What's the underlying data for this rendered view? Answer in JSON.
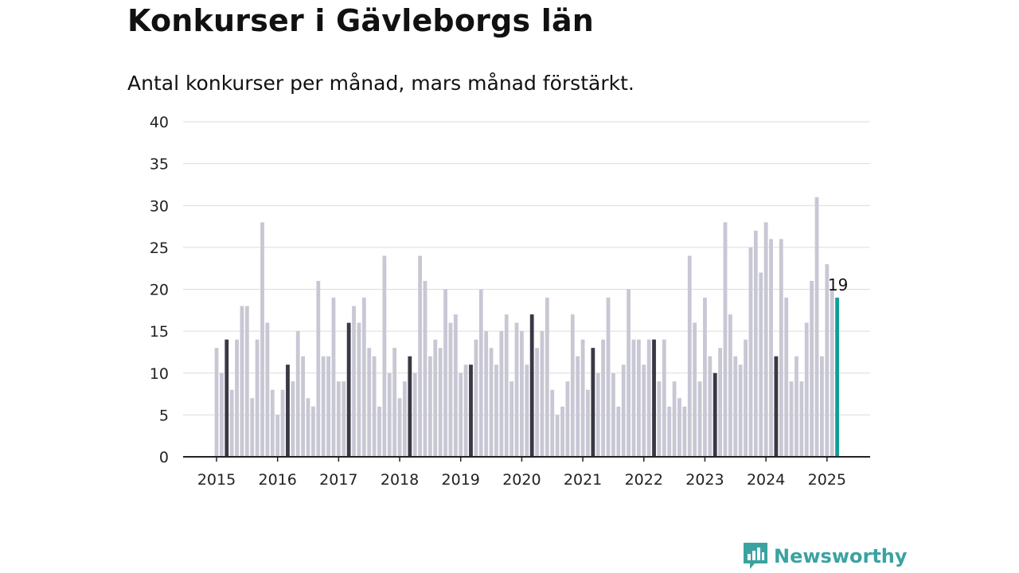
{
  "title": "Konkurser i Gävleborgs län",
  "subtitle": "Antal konkurser per månad, mars månad förstärkt.",
  "brand": {
    "name": "Newsworthy",
    "icon": "newsworthy-logo-icon",
    "color": "#3aa3a1"
  },
  "colors": {
    "bar": "#c8c7d4",
    "highlight": "#3a3845",
    "latest": "#0f9e96",
    "grid": "#dcdcdc",
    "axis": "#222222"
  },
  "chart_data": {
    "type": "bar",
    "start": "2015-01",
    "end": "2025-03",
    "categories": [
      "2015-01",
      "2015-02",
      "2015-03",
      "2015-04",
      "2015-05",
      "2015-06",
      "2015-07",
      "2015-08",
      "2015-09",
      "2015-10",
      "2015-11",
      "2015-12",
      "2016-01",
      "2016-02",
      "2016-03",
      "2016-04",
      "2016-05",
      "2016-06",
      "2016-07",
      "2016-08",
      "2016-09",
      "2016-10",
      "2016-11",
      "2016-12",
      "2017-01",
      "2017-02",
      "2017-03",
      "2017-04",
      "2017-05",
      "2017-06",
      "2017-07",
      "2017-08",
      "2017-09",
      "2017-10",
      "2017-11",
      "2017-12",
      "2018-01",
      "2018-02",
      "2018-03",
      "2018-04",
      "2018-05",
      "2018-06",
      "2018-07",
      "2018-08",
      "2018-09",
      "2018-10",
      "2018-11",
      "2018-12",
      "2019-01",
      "2019-02",
      "2019-03",
      "2019-04",
      "2019-05",
      "2019-06",
      "2019-07",
      "2019-08",
      "2019-09",
      "2019-10",
      "2019-11",
      "2019-12",
      "2020-01",
      "2020-02",
      "2020-03",
      "2020-04",
      "2020-05",
      "2020-06",
      "2020-07",
      "2020-08",
      "2020-09",
      "2020-10",
      "2020-11",
      "2020-12",
      "2021-01",
      "2021-02",
      "2021-03",
      "2021-04",
      "2021-05",
      "2021-06",
      "2021-07",
      "2021-08",
      "2021-09",
      "2021-10",
      "2021-11",
      "2021-12",
      "2022-01",
      "2022-02",
      "2022-03",
      "2022-04",
      "2022-05",
      "2022-06",
      "2022-07",
      "2022-08",
      "2022-09",
      "2022-10",
      "2022-11",
      "2022-12",
      "2023-01",
      "2023-02",
      "2023-03",
      "2023-04",
      "2023-05",
      "2023-06",
      "2023-07",
      "2023-08",
      "2023-09",
      "2023-10",
      "2023-11",
      "2023-12",
      "2024-01",
      "2024-02",
      "2024-03",
      "2024-04",
      "2024-05",
      "2024-06",
      "2024-07",
      "2024-08",
      "2024-09",
      "2024-10",
      "2024-11",
      "2024-12",
      "2025-01",
      "2025-02",
      "2025-03"
    ],
    "values": [
      13,
      10,
      14,
      8,
      14,
      18,
      18,
      7,
      14,
      28,
      16,
      8,
      5,
      8,
      11,
      9,
      15,
      12,
      7,
      6,
      21,
      12,
      12,
      19,
      9,
      9,
      16,
      18,
      16,
      19,
      13,
      12,
      6,
      24,
      10,
      13,
      7,
      9,
      12,
      10,
      24,
      21,
      12,
      14,
      13,
      20,
      16,
      17,
      10,
      11,
      11,
      14,
      20,
      15,
      13,
      11,
      15,
      17,
      9,
      16,
      15,
      11,
      17,
      13,
      15,
      19,
      8,
      5,
      6,
      9,
      17,
      12,
      14,
      8,
      13,
      10,
      14,
      19,
      10,
      6,
      11,
      20,
      14,
      14,
      11,
      14,
      14,
      9,
      14,
      6,
      9,
      7,
      6,
      24,
      16,
      9,
      19,
      12,
      10,
      13,
      28,
      17,
      12,
      11,
      14,
      25,
      27,
      22,
      28,
      26,
      12,
      26,
      19,
      9,
      12,
      9,
      16,
      21,
      31,
      12,
      23,
      20,
      19
    ],
    "highlight_month": "03",
    "annotation": {
      "category": "2025-03",
      "text": "19"
    },
    "x_tick_labels": [
      "2015",
      "2016",
      "2017",
      "2018",
      "2019",
      "2020",
      "2021",
      "2022",
      "2023",
      "2024",
      "2025"
    ],
    "y_ticks": [
      0,
      5,
      10,
      15,
      20,
      25,
      30,
      35,
      40
    ],
    "ylim": [
      0,
      40
    ],
    "grid": true,
    "legend": "none"
  }
}
